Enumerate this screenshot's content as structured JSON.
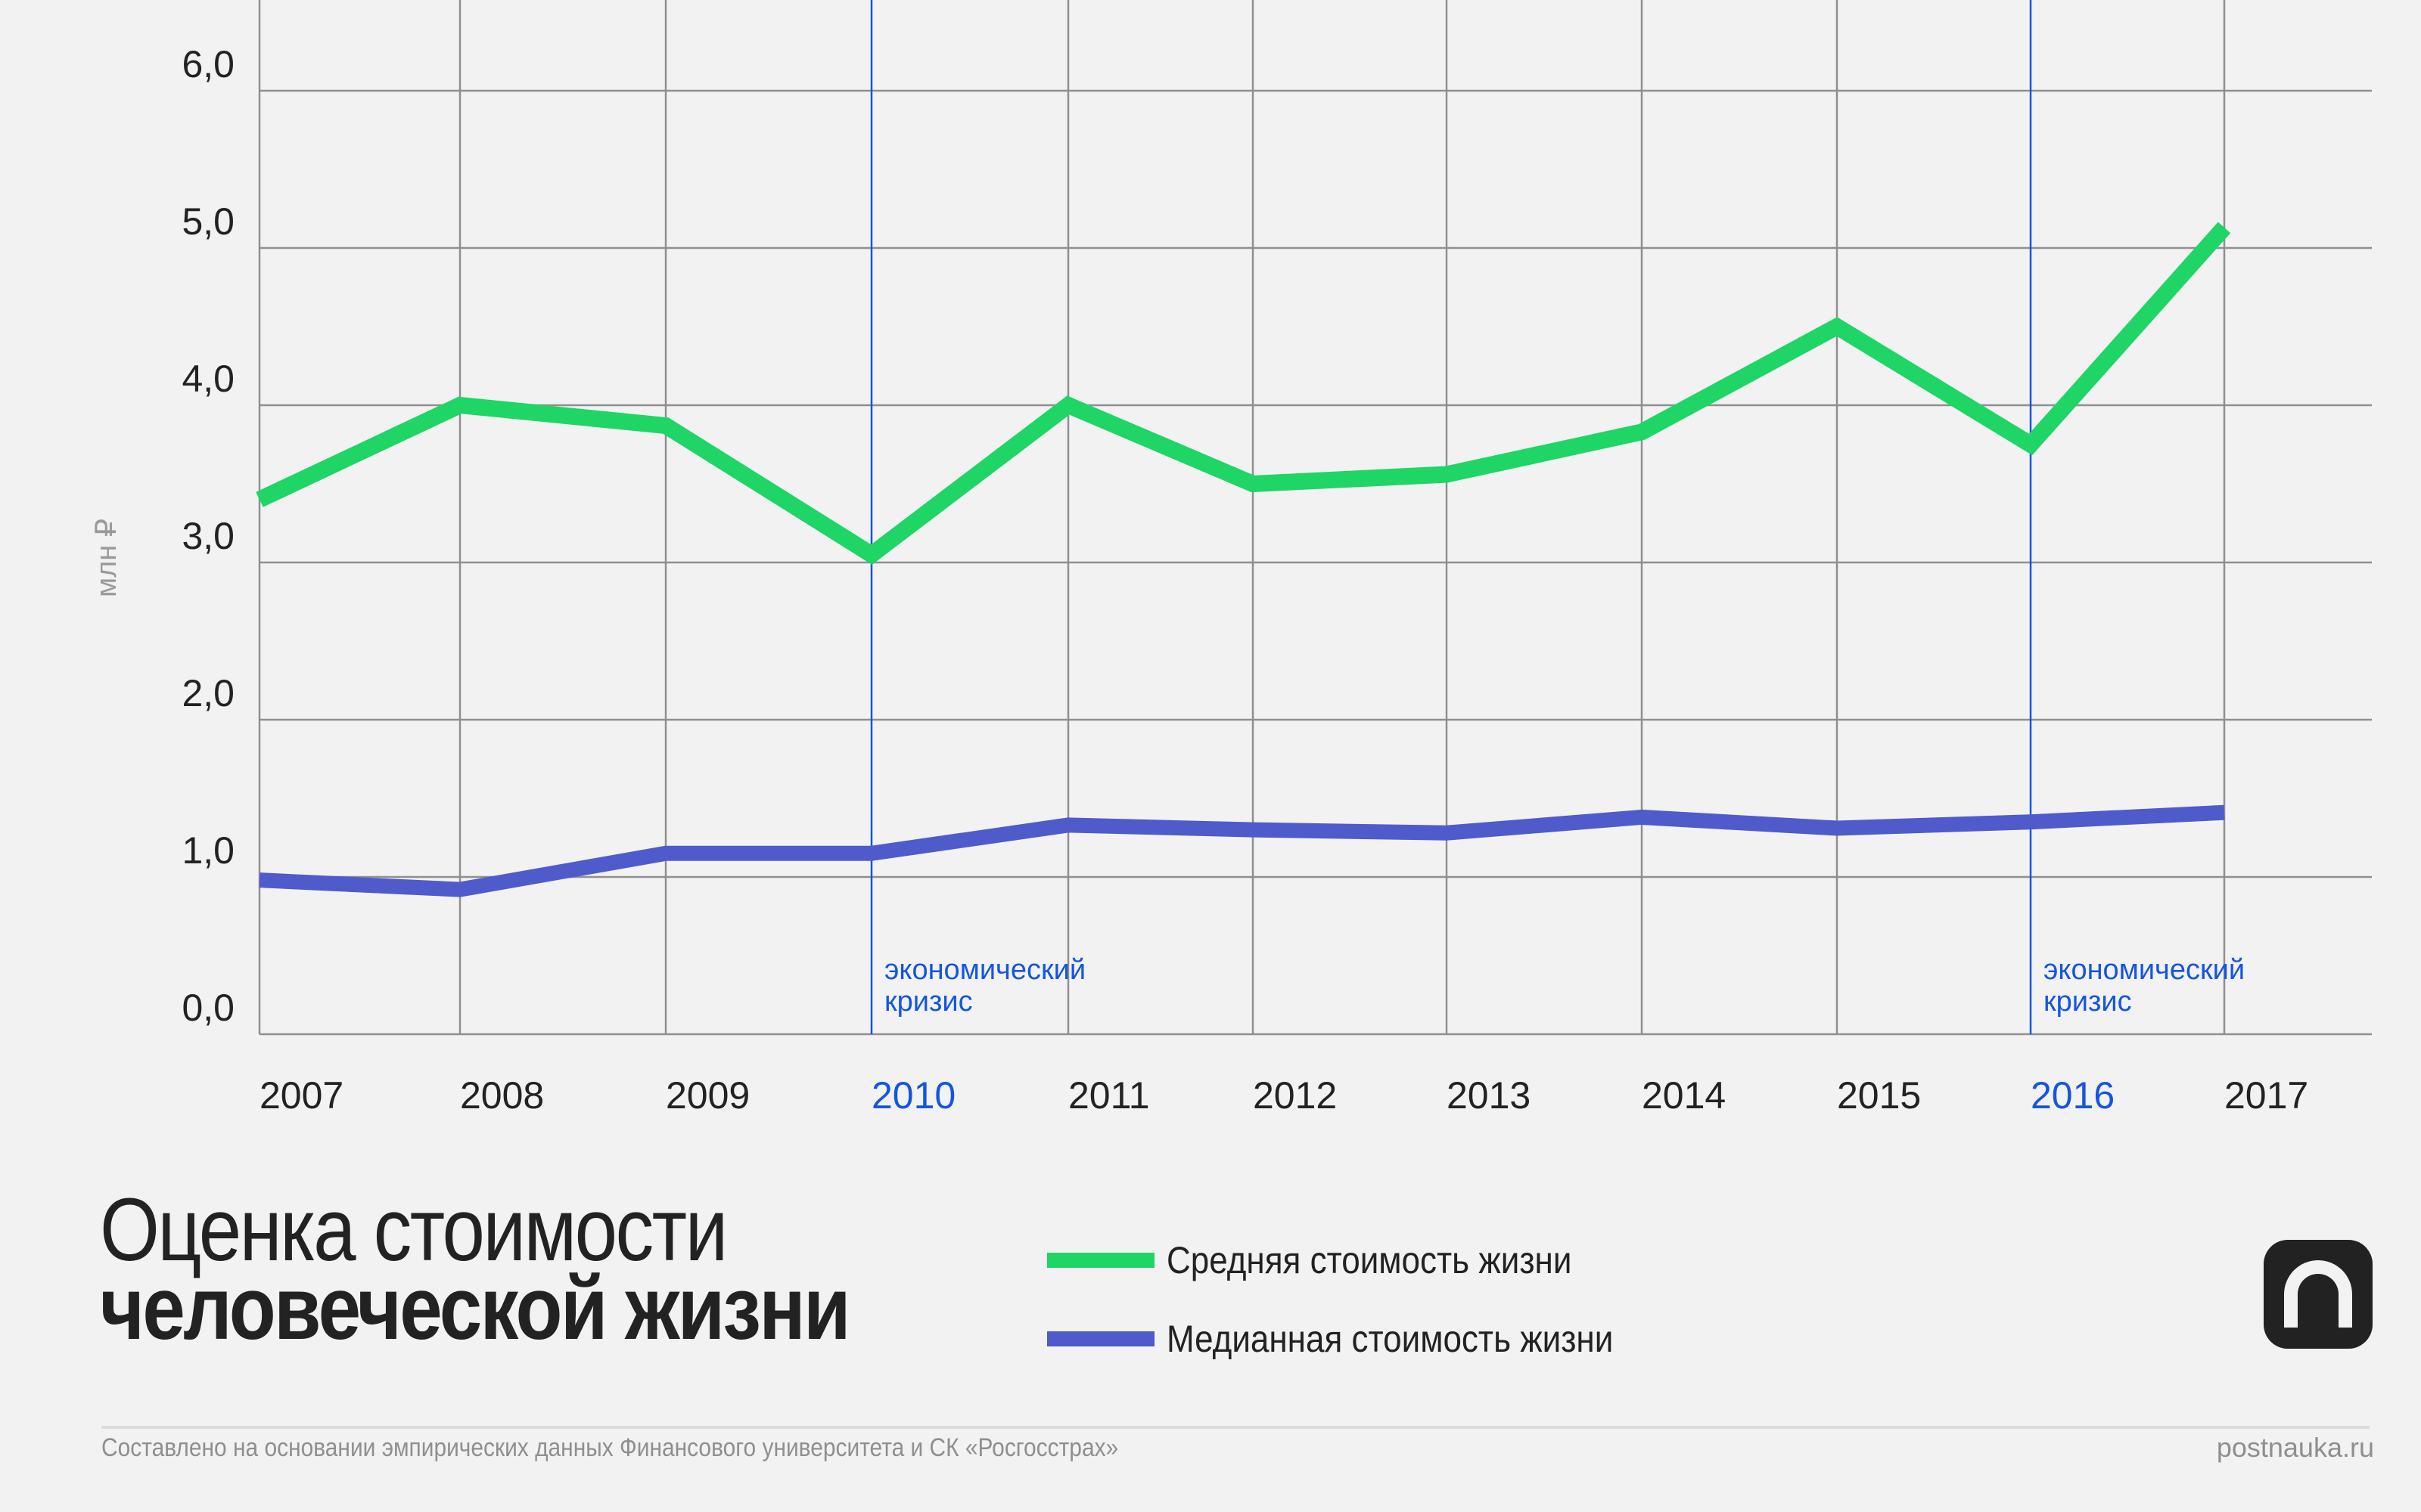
{
  "header": {
    "title_line1": "Оценка стоимости",
    "title_line2": "человеческой жизни"
  },
  "axis": {
    "ylabel": "млн ₽",
    "yticks": [
      "6,0",
      "5,0",
      "4,0",
      "3,0",
      "2,0",
      "1,0",
      "0,0"
    ],
    "xticks": [
      "2007",
      "2008",
      "2009",
      "2010",
      "2011",
      "2012",
      "2013",
      "2014",
      "2015",
      "2016",
      "2017"
    ],
    "crisis_years": [
      "2010",
      "2016"
    ]
  },
  "annotations": [
    {
      "year": "2010",
      "line1": "экономический",
      "line2": "кризис"
    },
    {
      "year": "2016",
      "line1": "экономический",
      "line2": "кризис"
    }
  ],
  "legend": {
    "items": [
      {
        "label": "Средняя стоимость жизни",
        "color": "#1ed566"
      },
      {
        "label": "Медианная стоимость жизни",
        "color": "#4f5bca"
      }
    ]
  },
  "colors": {
    "background": "#f2f2f2",
    "grid": "#8f8f8f",
    "crisis_line": "#1555e0",
    "average": "#1ed566",
    "median": "#4f5bca",
    "text": "#222222"
  },
  "footer": {
    "source": "Составлено на основании эмпирических данных Финансового университета и СК «Росгосстрах»",
    "site": "postnauka.ru"
  },
  "logo": {
    "icon": "postnauka-logo-icon"
  },
  "chart_data": {
    "type": "line",
    "title": "Оценка стоимости человеческой жизни",
    "xlabel": "",
    "ylabel": "млн ₽",
    "ylim": [
      0,
      6.5
    ],
    "grid": true,
    "legend_position": "bottom",
    "categories": [
      "2007",
      "2008",
      "2009",
      "2010",
      "2011",
      "2012",
      "2013",
      "2014",
      "2015",
      "2016",
      "2017"
    ],
    "series": [
      {
        "name": "Средняя стоимость жизни",
        "color": "#1ed566",
        "values": [
          3.4,
          4.0,
          3.87,
          3.05,
          4.0,
          3.5,
          3.56,
          3.83,
          4.5,
          3.75,
          5.13
        ]
      },
      {
        "name": "Медианная стоимость жизни",
        "color": "#4f5bca",
        "values": [
          0.98,
          0.92,
          1.15,
          1.15,
          1.33,
          1.3,
          1.28,
          1.38,
          1.31,
          1.35,
          1.41
        ]
      }
    ],
    "annotations": [
      {
        "x": "2010",
        "text": "экономический кризис"
      },
      {
        "x": "2016",
        "text": "экономический кризис"
      }
    ]
  }
}
